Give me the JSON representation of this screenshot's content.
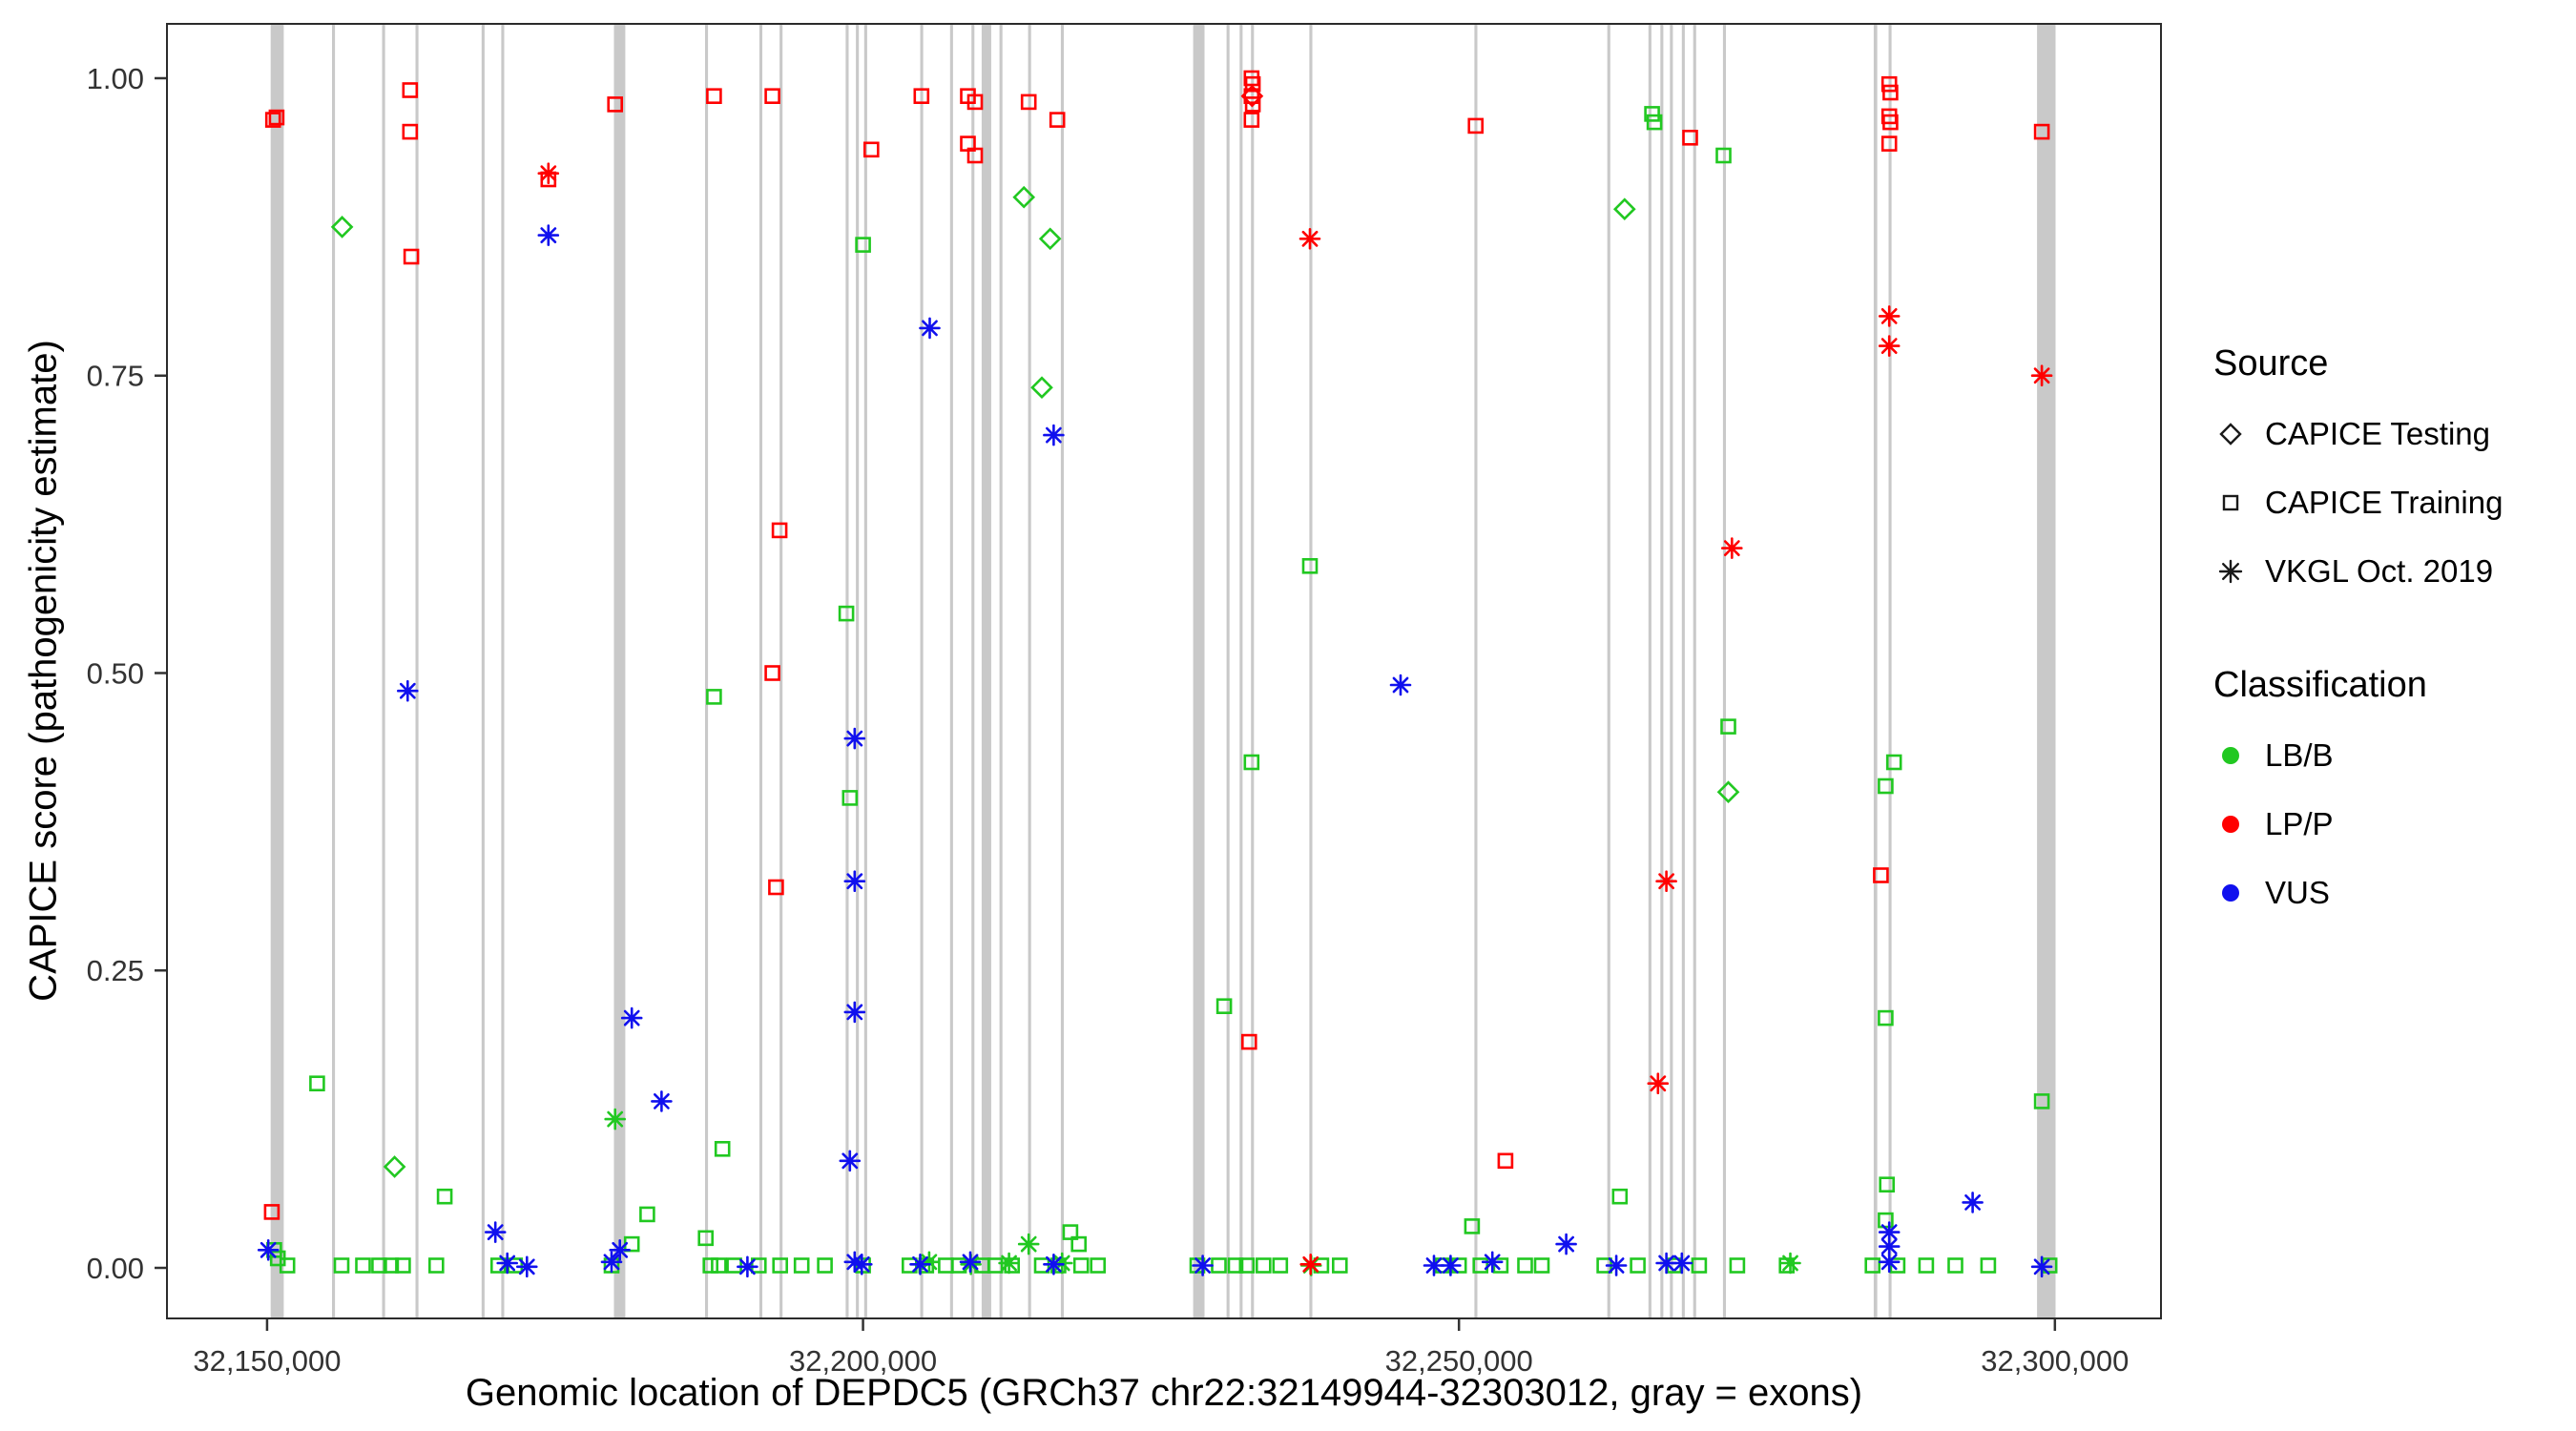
{
  "chart_data": {
    "type": "scatter",
    "title": "",
    "xlabel": "Genomic location of DEPDC5 (GRCh37 chr22:32149944-32303012, gray = exons)",
    "ylabel": "CAPICE score (pathogenicity estimate)",
    "xlim": [
      32141600,
      32308900
    ],
    "ylim": [
      -0.0425,
      1.0457
    ],
    "grid": false,
    "panel_border_color": "#2b2b2b",
    "tick_label_color": "#333333",
    "exon_color": "#c3c3c3",
    "xticks": [
      {
        "value": 32150000,
        "label": "32,150,000"
      },
      {
        "value": 32200000,
        "label": "32,200,000"
      },
      {
        "value": 32250000,
        "label": "32,250,000"
      },
      {
        "value": 32300000,
        "label": "32,300,000"
      }
    ],
    "yticks": [
      {
        "value": 0.0,
        "label": "0.00"
      },
      {
        "value": 0.25,
        "label": "0.25"
      },
      {
        "value": 0.5,
        "label": "0.50"
      },
      {
        "value": 0.75,
        "label": "0.75"
      },
      {
        "value": 1.0,
        "label": "1.00"
      }
    ],
    "colors": {
      "LB/B": "#21c821",
      "LP/P": "#ff0000",
      "VUS": "#1010ee"
    },
    "legend": {
      "source_title": "Source",
      "source_items": [
        {
          "label": "CAPICE Testing",
          "shape": "diamond"
        },
        {
          "label": "CAPICE Training",
          "shape": "square"
        },
        {
          "label": "VKGL Oct. 2019",
          "shape": "asterisk"
        }
      ],
      "classification_title": "Classification",
      "classification_items": [
        {
          "label": "LB/B",
          "color": "#21c821"
        },
        {
          "label": "LP/P",
          "color": "#ff0000"
        },
        {
          "label": "VUS",
          "color": "#1010ee"
        }
      ]
    },
    "exons": [
      [
        32150300,
        32151400
      ],
      [
        32155450,
        32155700
      ],
      [
        32159650,
        32159900
      ],
      [
        32162450,
        32162700
      ],
      [
        32168000,
        32168250
      ],
      [
        32169650,
        32169900
      ],
      [
        32179100,
        32180050
      ],
      [
        32186750,
        32187000
      ],
      [
        32191300,
        32191550
      ],
      [
        32193000,
        32193250
      ],
      [
        32198550,
        32198800
      ],
      [
        32199400,
        32199650
      ],
      [
        32200100,
        32200350
      ],
      [
        32204800,
        32205050
      ],
      [
        32207300,
        32207550
      ],
      [
        32209100,
        32209350
      ],
      [
        32209950,
        32210750
      ],
      [
        32211450,
        32211700
      ],
      [
        32213850,
        32214100
      ],
      [
        32216600,
        32216850
      ],
      [
        32227700,
        32228650
      ],
      [
        32230500,
        32230750
      ],
      [
        32231600,
        32231850
      ],
      [
        32232550,
        32232800
      ],
      [
        32237450,
        32237700
      ],
      [
        32251300,
        32251550
      ],
      [
        32262450,
        32262700
      ],
      [
        32265900,
        32266150
      ],
      [
        32266900,
        32267150
      ],
      [
        32267700,
        32267950
      ],
      [
        32268700,
        32268950
      ],
      [
        32269650,
        32269900
      ],
      [
        32272150,
        32272400
      ],
      [
        32284800,
        32285100
      ],
      [
        32286050,
        32286300
      ],
      [
        32298500,
        32300050
      ]
    ],
    "series": [
      {
        "source": "CAPICE Testing",
        "classification": "LB/B",
        "shape": "diamond",
        "points": [
          [
            32156300,
            0.875
          ],
          [
            32160700,
            0.085
          ],
          [
            32213500,
            0.9
          ],
          [
            32215700,
            0.865
          ],
          [
            32215000,
            0.74
          ],
          [
            32263900,
            0.89
          ],
          [
            32272600,
            0.4
          ]
        ]
      },
      {
        "source": "CAPICE Testing",
        "classification": "LP/P",
        "shape": "diamond",
        "points": [
          [
            32232650,
            0.985
          ]
        ]
      },
      {
        "source": "CAPICE Training",
        "classification": "LB/B",
        "shape": "square",
        "points": [
          [
            32150600,
            0.015
          ],
          [
            32150900,
            0.008
          ],
          [
            32154200,
            0.155
          ],
          [
            32164900,
            0.06
          ],
          [
            32180600,
            0.02
          ],
          [
            32181900,
            0.045
          ],
          [
            32186800,
            0.025
          ],
          [
            32187500,
            0.48
          ],
          [
            32188200,
            0.1
          ],
          [
            32198600,
            0.55
          ],
          [
            32198900,
            0.395
          ],
          [
            32200000,
            0.86
          ],
          [
            32217400,
            0.03
          ],
          [
            32218100,
            0.02
          ],
          [
            32230300,
            0.22
          ],
          [
            32232600,
            0.425
          ],
          [
            32237500,
            0.59
          ],
          [
            32251100,
            0.035
          ],
          [
            32263500,
            0.06
          ],
          [
            32266200,
            0.97
          ],
          [
            32266400,
            0.963
          ],
          [
            32272200,
            0.935
          ],
          [
            32272600,
            0.455
          ],
          [
            32285800,
            0.405
          ],
          [
            32286500,
            0.425
          ],
          [
            32285800,
            0.21
          ],
          [
            32285900,
            0.07
          ],
          [
            32285800,
            0.04
          ],
          [
            32298900,
            0.14
          ],
          [
            32151700,
            0.002
          ],
          [
            32156250,
            0.002
          ],
          [
            32158050,
            0.002
          ],
          [
            32159400,
            0.002
          ],
          [
            32160400,
            0.002
          ],
          [
            32161400,
            0.002
          ],
          [
            32164200,
            0.002
          ],
          [
            32169400,
            0.002
          ],
          [
            32170800,
            0.002
          ],
          [
            32178900,
            0.002
          ],
          [
            32187200,
            0.002
          ],
          [
            32187900,
            0.002
          ],
          [
            32189200,
            0.002
          ],
          [
            32191250,
            0.002
          ],
          [
            32193050,
            0.002
          ],
          [
            32194850,
            0.002
          ],
          [
            32196800,
            0.002
          ],
          [
            32200000,
            0.002
          ],
          [
            32203900,
            0.002
          ],
          [
            32205300,
            0.002
          ],
          [
            32206950,
            0.002
          ],
          [
            32208050,
            0.002
          ],
          [
            32210000,
            0.002
          ],
          [
            32211100,
            0.002
          ],
          [
            32212500,
            0.002
          ],
          [
            32215000,
            0.002
          ],
          [
            32216400,
            0.002
          ],
          [
            32218300,
            0.002
          ],
          [
            32219700,
            0.002
          ],
          [
            32228050,
            0.002
          ],
          [
            32229850,
            0.002
          ],
          [
            32231250,
            0.002
          ],
          [
            32232200,
            0.002
          ],
          [
            32233600,
            0.002
          ],
          [
            32235000,
            0.002
          ],
          [
            32238450,
            0.002
          ],
          [
            32240000,
            0.002
          ],
          [
            32248600,
            0.002
          ],
          [
            32250000,
            0.002
          ],
          [
            32251800,
            0.002
          ],
          [
            32253500,
            0.002
          ],
          [
            32255550,
            0.002
          ],
          [
            32256950,
            0.002
          ],
          [
            32262200,
            0.002
          ],
          [
            32265000,
            0.002
          ],
          [
            32268050,
            0.002
          ],
          [
            32270150,
            0.002
          ],
          [
            32273350,
            0.002
          ],
          [
            32277500,
            0.002
          ],
          [
            32284700,
            0.002
          ],
          [
            32286800,
            0.002
          ],
          [
            32289200,
            0.002
          ],
          [
            32291650,
            0.002
          ],
          [
            32294400,
            0.002
          ],
          [
            32299550,
            0.002
          ]
        ]
      },
      {
        "source": "CAPICE Training",
        "classification": "LP/P",
        "shape": "square",
        "points": [
          [
            32150500,
            0.965
          ],
          [
            32150800,
            0.967
          ],
          [
            32150400,
            0.047
          ],
          [
            32162000,
            0.99
          ],
          [
            32162000,
            0.955
          ],
          [
            32162100,
            0.85
          ],
          [
            32173600,
            0.915
          ],
          [
            32179200,
            0.978
          ],
          [
            32187500,
            0.985
          ],
          [
            32192400,
            0.985
          ],
          [
            32193000,
            0.62
          ],
          [
            32192400,
            0.5
          ],
          [
            32192700,
            0.32
          ],
          [
            32200700,
            0.94
          ],
          [
            32204900,
            0.985
          ],
          [
            32208800,
            0.985
          ],
          [
            32209400,
            0.98
          ],
          [
            32208800,
            0.945
          ],
          [
            32209400,
            0.935
          ],
          [
            32213900,
            0.98
          ],
          [
            32216300,
            0.965
          ],
          [
            32232600,
            1.0
          ],
          [
            32232700,
            0.995
          ],
          [
            32232600,
            0.985
          ],
          [
            32232700,
            0.978
          ],
          [
            32232600,
            0.965
          ],
          [
            32232400,
            0.19
          ],
          [
            32251400,
            0.96
          ],
          [
            32253900,
            0.09
          ],
          [
            32269400,
            0.95
          ],
          [
            32286100,
            0.995
          ],
          [
            32286200,
            0.988
          ],
          [
            32286100,
            0.968
          ],
          [
            32286200,
            0.963
          ],
          [
            32286100,
            0.945
          ],
          [
            32285400,
            0.33
          ],
          [
            32298900,
            0.955
          ]
        ]
      },
      {
        "source": "VKGL Oct. 2019",
        "classification": "LB/B",
        "shape": "asterisk",
        "points": [
          [
            32179200,
            0.125
          ],
          [
            32205550,
            0.005
          ],
          [
            32209050,
            0.003
          ],
          [
            32212250,
            0.004
          ],
          [
            32213900,
            0.02
          ],
          [
            32216700,
            0.004
          ],
          [
            32237600,
            0.002
          ],
          [
            32277800,
            0.004
          ]
        ]
      },
      {
        "source": "VKGL Oct. 2019",
        "classification": "LP/P",
        "shape": "asterisk",
        "points": [
          [
            32173600,
            0.92
          ],
          [
            32237500,
            0.865
          ],
          [
            32237550,
            0.003
          ],
          [
            32266700,
            0.155
          ],
          [
            32267400,
            0.325
          ],
          [
            32272900,
            0.605
          ],
          [
            32286100,
            0.8
          ],
          [
            32286100,
            0.775
          ],
          [
            32298900,
            0.75
          ]
        ]
      },
      {
        "source": "VKGL Oct. 2019",
        "classification": "VUS",
        "shape": "asterisk",
        "points": [
          [
            32150100,
            0.015
          ],
          [
            32161800,
            0.485
          ],
          [
            32169150,
            0.03
          ],
          [
            32170150,
            0.004
          ],
          [
            32171800,
            0.001
          ],
          [
            32173600,
            0.868
          ],
          [
            32178900,
            0.005
          ],
          [
            32179600,
            0.015
          ],
          [
            32180600,
            0.21
          ],
          [
            32183100,
            0.14
          ],
          [
            32190300,
            0.001
          ],
          [
            32198900,
            0.09
          ],
          [
            32199300,
            0.445
          ],
          [
            32199300,
            0.325
          ],
          [
            32199300,
            0.215
          ],
          [
            32199300,
            0.005
          ],
          [
            32199900,
            0.003
          ],
          [
            32204800,
            0.003
          ],
          [
            32205600,
            0.79
          ],
          [
            32209000,
            0.005
          ],
          [
            32216000,
            0.7
          ],
          [
            32216000,
            0.003
          ],
          [
            32228500,
            0.002
          ],
          [
            32245100,
            0.49
          ],
          [
            32247900,
            0.002
          ],
          [
            32249300,
            0.002
          ],
          [
            32252800,
            0.005
          ],
          [
            32259000,
            0.02
          ],
          [
            32263200,
            0.002
          ],
          [
            32267400,
            0.004
          ],
          [
            32268700,
            0.004
          ],
          [
            32286100,
            0.03
          ],
          [
            32286100,
            0.018
          ],
          [
            32286100,
            0.005
          ],
          [
            32293100,
            0.055
          ],
          [
            32298900,
            0.001
          ]
        ]
      }
    ]
  }
}
